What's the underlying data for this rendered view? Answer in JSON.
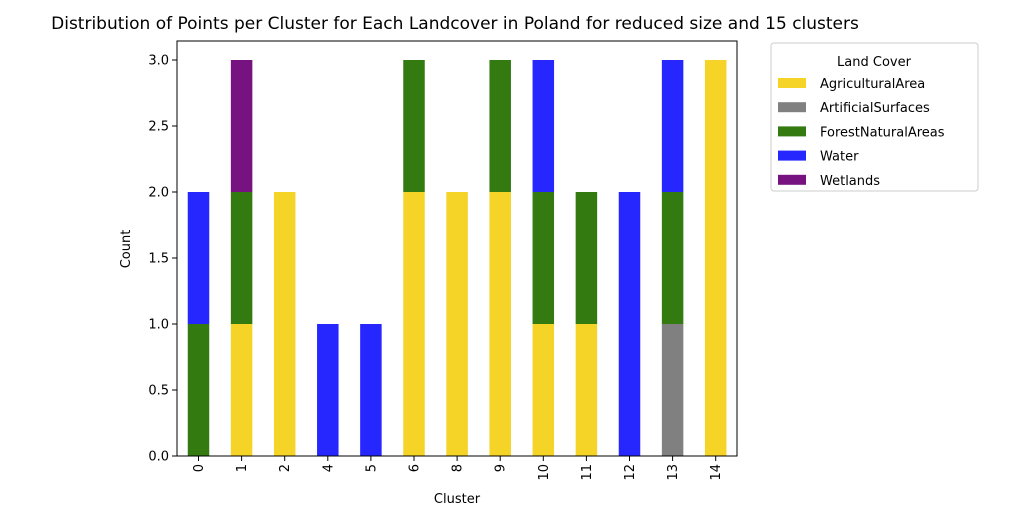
{
  "chart_data": {
    "type": "bar",
    "stacked": true,
    "title": "Distribution of Points per Cluster for Each Landcover in Poland for reduced size and 15 clusters",
    "xlabel": "Cluster",
    "ylabel": "Count",
    "ylim": [
      0,
      3.0
    ],
    "yticks": [
      "0.0",
      "0.5",
      "1.0",
      "1.5",
      "2.0",
      "2.5",
      "3.0"
    ],
    "categories": [
      "0",
      "1",
      "2",
      "4",
      "5",
      "6",
      "8",
      "9",
      "10",
      "11",
      "12",
      "13",
      "14"
    ],
    "legend_title": "Land Cover",
    "legend_position": "upper right, outside plot",
    "grid": false,
    "series": [
      {
        "name": "AgriculturalArea",
        "color": "#f5d327",
        "values": [
          0,
          1,
          2,
          0,
          0,
          2,
          2,
          2,
          1,
          1,
          0,
          0,
          3
        ]
      },
      {
        "name": "ArtificialSurfaces",
        "color": "#808080",
        "values": [
          0,
          0,
          0,
          0,
          0,
          0,
          0,
          0,
          0,
          0,
          0,
          1,
          0
        ]
      },
      {
        "name": "ForestNaturalAreas",
        "color": "#337a11",
        "values": [
          1,
          1,
          0,
          0,
          0,
          1,
          0,
          1,
          1,
          1,
          0,
          1,
          0
        ]
      },
      {
        "name": "Water",
        "color": "#2626ff",
        "values": [
          1,
          0,
          0,
          1,
          1,
          0,
          0,
          0,
          1,
          0,
          2,
          1,
          0
        ]
      },
      {
        "name": "Wetlands",
        "color": "#761380",
        "values": [
          0,
          1,
          0,
          0,
          0,
          0,
          0,
          0,
          0,
          0,
          0,
          0,
          0
        ]
      }
    ]
  }
}
